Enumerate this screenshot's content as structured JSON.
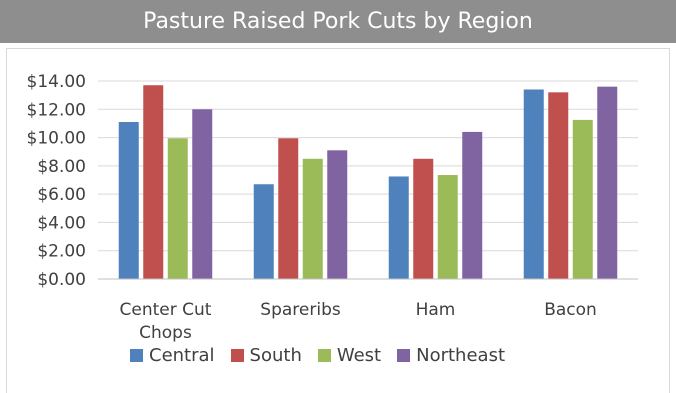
{
  "chart_data": {
    "type": "bar",
    "title": "Pasture Raised Pork Cuts by Region",
    "categories": [
      "Center Cut Chops",
      "Spareribs",
      "Ham",
      "Bacon"
    ],
    "category_lines": [
      [
        "Center Cut",
        "Chops"
      ],
      [
        "Spareribs"
      ],
      [
        "Ham"
      ],
      [
        "Bacon"
      ]
    ],
    "series": [
      {
        "name": "Central",
        "color": "#4f81bd",
        "values": [
          11.1,
          6.7,
          7.25,
          13.4
        ]
      },
      {
        "name": "South",
        "color": "#c0504d",
        "values": [
          13.7,
          9.95,
          8.5,
          13.2
        ]
      },
      {
        "name": "West",
        "color": "#9bbb59",
        "values": [
          9.95,
          8.5,
          7.35,
          11.25
        ]
      },
      {
        "name": "Northeast",
        "color": "#8064a2",
        "values": [
          12.0,
          9.1,
          10.4,
          13.6
        ]
      }
    ],
    "yticks": [
      "$0.00",
      "$2.00",
      "$4.00",
      "$6.00",
      "$8.00",
      "$10.00",
      "$12.00",
      "$14.00"
    ],
    "ylim": [
      0,
      14
    ],
    "grid": true,
    "legend_position": "bottom",
    "xlabel": "",
    "ylabel": ""
  }
}
